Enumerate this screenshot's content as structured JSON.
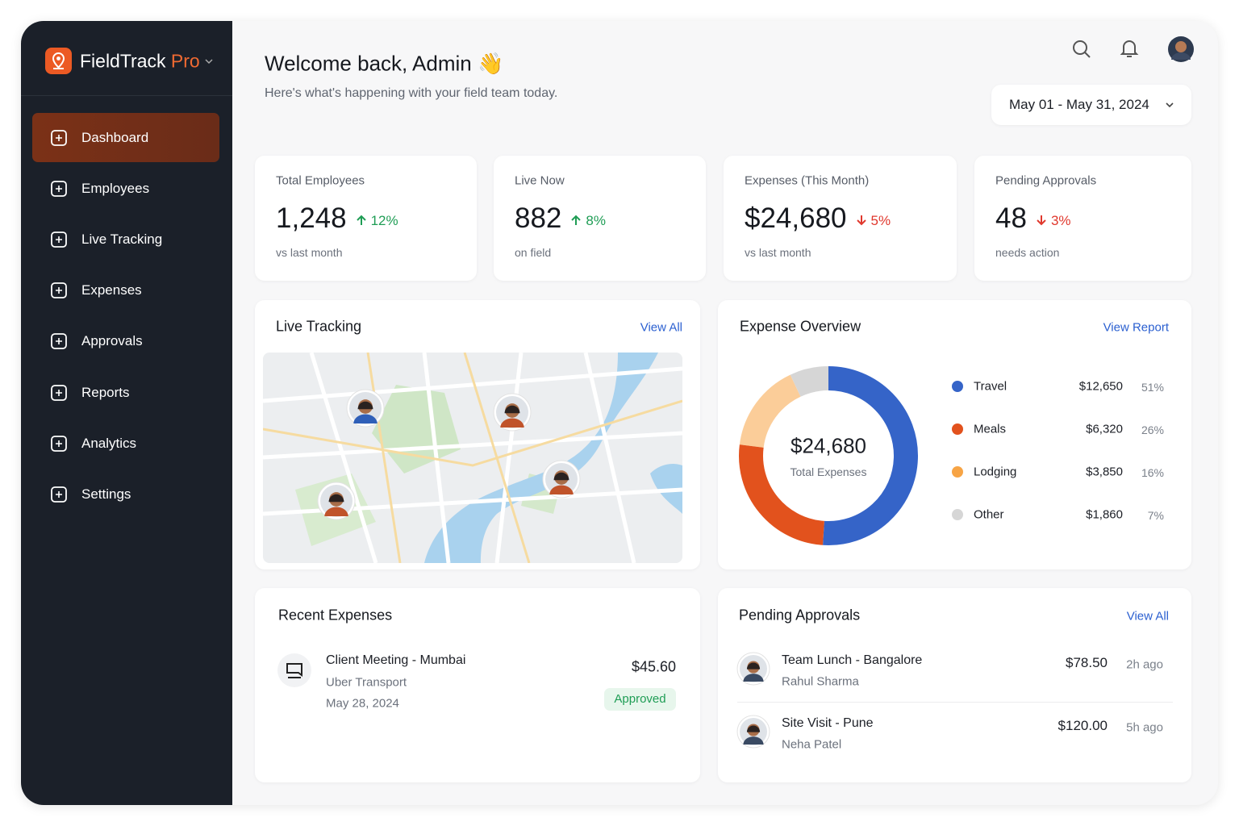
{
  "sidebar": {
    "brand": "FieldTrack",
    "brand_accent": "Pro",
    "active": 0,
    "nav": [
      "Dashboard",
      "Employees",
      "Live Tracking",
      "Expenses",
      "Approvals",
      "Reports",
      "Analytics",
      "Settings"
    ]
  },
  "header": {
    "title": "Welcome back, Admin 👋",
    "subtitle": "Here's what's happening with your field team today.",
    "date_range": "May 01 - May 31, 2024"
  },
  "stats": [
    {
      "label": "Total Employees",
      "value": "1,248",
      "change": "12%",
      "direction": "up",
      "note": "vs last month"
    },
    {
      "label": "Live Now",
      "value": "882",
      "change": "8%",
      "direction": "up",
      "note": "on field"
    },
    {
      "label": "Expenses (This Month)",
      "value": "$24,680",
      "change": "5%",
      "direction": "down",
      "note": "vs last month"
    },
    {
      "label": "Pending Approvals",
      "value": "48",
      "change": "3%",
      "direction": "down",
      "note": "needs action"
    }
  ],
  "live_tracking": {
    "title": "Live Tracking",
    "link": "View All"
  },
  "chart_data": {
    "type": "donut",
    "title": "Expense Overview",
    "link": "View Report",
    "center_value": "$24,680",
    "center_label": "Total Expenses",
    "categories": [
      "Travel",
      "Meals",
      "Lodging",
      "Other"
    ],
    "values": [
      51,
      26,
      16,
      7
    ],
    "value_labels": [
      "51%",
      "26%",
      "16%",
      "7%"
    ],
    "amounts": [
      "$12,650",
      "$6,320",
      "$3,850",
      "$1,860"
    ],
    "colors": [
      "#3564c8",
      "#e2521d",
      "#f7a445",
      "#d6d6d6"
    ]
  },
  "recent_expenses": {
    "title": "Recent Expenses",
    "items": [
      {
        "title": "Client Meeting - Mumbai",
        "subtitle": "Uber Transport",
        "date": "May 28, 2024",
        "amount": "$45.60",
        "status": "Approved"
      }
    ]
  },
  "pending_approvals": {
    "title": "Pending Approvals",
    "link": "View All",
    "items": [
      {
        "title": "Team Lunch - Bangalore",
        "person": "Rahul Sharma",
        "amount": "$78.50",
        "time": "2h ago"
      },
      {
        "title": "Site Visit - Pune",
        "person": "Neha Patel",
        "amount": "$120.00",
        "time": "5h ago"
      }
    ]
  }
}
